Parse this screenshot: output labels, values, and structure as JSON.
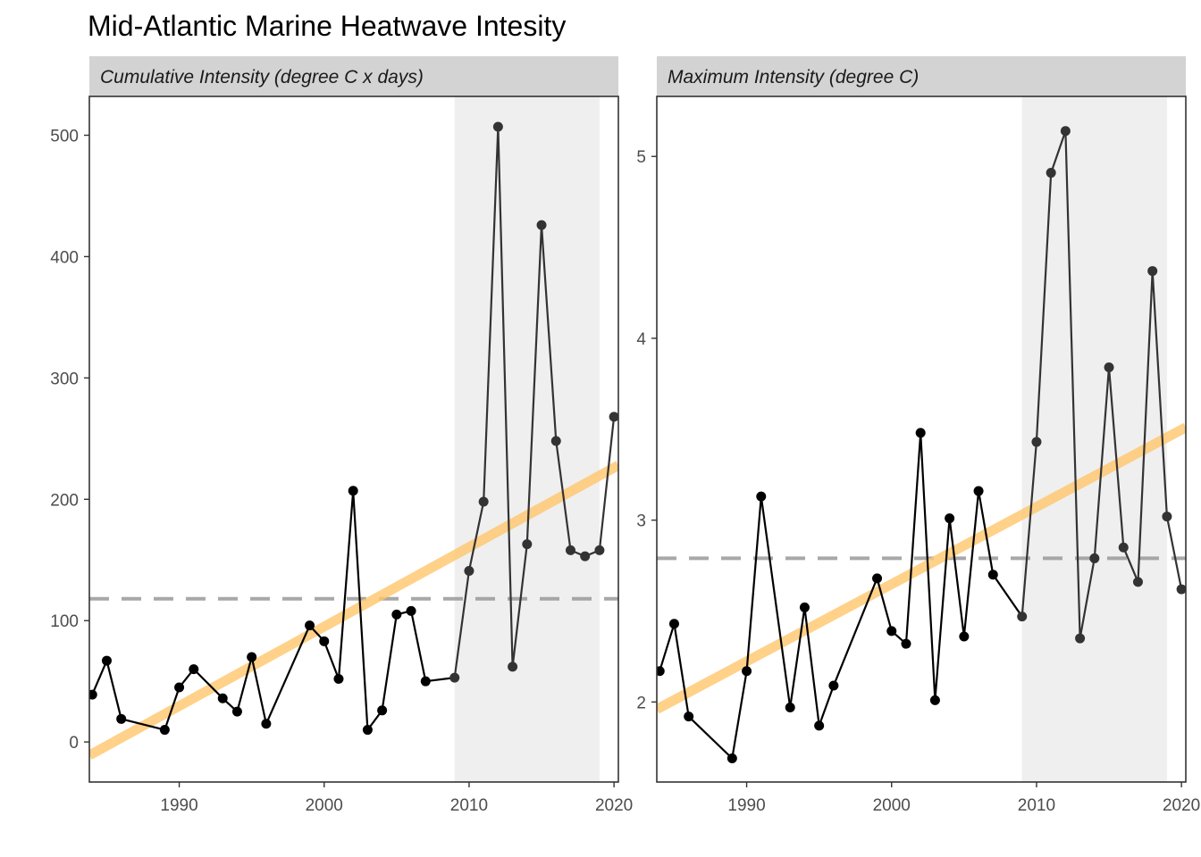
{
  "title": "Mid-Atlantic Marine Heatwave Intesity",
  "colors": {
    "series": "#000000",
    "series_recent": "#333333",
    "trend": "#FFC56B",
    "mean": "#999999",
    "shade": "#EFEFEF",
    "strip": "#D3D3D3"
  },
  "chart_data": [
    {
      "type": "line",
      "panel_title": "Cumulative Intensity (degree C x days)",
      "xlabel": "",
      "ylabel": "",
      "xlim": [
        1983.8,
        2020.3
      ],
      "ylim": [
        -33,
        532
      ],
      "x_ticks": [
        1990,
        2000,
        2010,
        2020
      ],
      "y_ticks": [
        0,
        100,
        200,
        300,
        400,
        500
      ],
      "grid": false,
      "shaded_period": [
        2009,
        2019
      ],
      "mean_line": 118,
      "trend_line": {
        "x": [
          1983.8,
          2020.3
        ],
        "y": [
          -11,
          228
        ]
      },
      "x": [
        1984,
        1985,
        1986,
        1989,
        1990,
        1991,
        1993,
        1994,
        1995,
        1996,
        1999,
        2000,
        2001,
        2002,
        2003,
        2004,
        2005,
        2006,
        2007,
        2009,
        2010,
        2011,
        2012,
        2013,
        2014,
        2015,
        2016,
        2017,
        2018,
        2019,
        2020
      ],
      "y": [
        39,
        67,
        19,
        10,
        45,
        60,
        36,
        25,
        70,
        15,
        96,
        83,
        52,
        207,
        10,
        26,
        105,
        108,
        50,
        53,
        141,
        198,
        507,
        62,
        163,
        426,
        248,
        158,
        153,
        158,
        268
      ]
    },
    {
      "type": "line",
      "panel_title": "Maximum Intensity (degree C)",
      "xlabel": "",
      "ylabel": "",
      "xlim": [
        1983.8,
        2020.3
      ],
      "ylim": [
        1.56,
        5.33
      ],
      "x_ticks": [
        1990,
        2000,
        2010,
        2020
      ],
      "y_ticks": [
        2,
        3,
        4,
        5
      ],
      "grid": false,
      "shaded_period": [
        2009,
        2019
      ],
      "mean_line": 2.79,
      "trend_line": {
        "x": [
          1983.8,
          2020.3
        ],
        "y": [
          1.96,
          3.51
        ]
      },
      "x": [
        1984,
        1985,
        1986,
        1989,
        1990,
        1991,
        1993,
        1994,
        1995,
        1996,
        1999,
        2000,
        2001,
        2002,
        2003,
        2004,
        2005,
        2006,
        2007,
        2009,
        2010,
        2011,
        2012,
        2013,
        2014,
        2015,
        2016,
        2017,
        2018,
        2019,
        2020
      ],
      "y": [
        2.17,
        2.43,
        1.92,
        1.69,
        2.17,
        3.13,
        1.97,
        2.52,
        1.87,
        2.09,
        2.68,
        2.39,
        2.32,
        3.48,
        2.01,
        3.01,
        2.36,
        3.16,
        2.7,
        2.47,
        3.43,
        4.91,
        5.14,
        2.35,
        2.79,
        3.84,
        2.85,
        2.66,
        4.37,
        3.02,
        2.62
      ]
    }
  ]
}
